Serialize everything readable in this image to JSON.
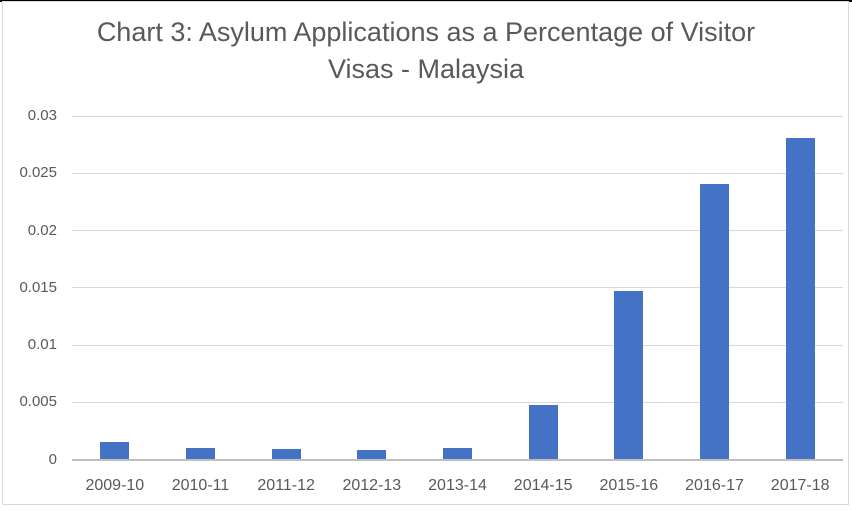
{
  "chart_data": {
    "type": "bar",
    "title": "Chart 3: Asylum Applications as a Percentage of Visitor Visas - Malaysia",
    "title_lines": [
      "Chart 3: Asylum Applications as a Percentage of Visitor",
      "Visas - Malaysia"
    ],
    "categories": [
      "2009-10",
      "2010-11",
      "2011-12",
      "2012-13",
      "2013-14",
      "2014-15",
      "2015-16",
      "2016-17",
      "2017-18"
    ],
    "values": [
      0.0015,
      0.001,
      0.0009,
      0.0008,
      0.001,
      0.0047,
      0.0147,
      0.024,
      0.028
    ],
    "xlabel": "",
    "ylabel": "",
    "ylim": [
      0,
      0.03
    ],
    "yticks": [
      0,
      0.005,
      0.01,
      0.015,
      0.02,
      0.025,
      0.03
    ],
    "ytick_labels": [
      "0",
      "0.005",
      "0.01",
      "0.015",
      "0.02",
      "0.025",
      "0.03"
    ],
    "grid": true,
    "legend": "none",
    "colors": {
      "bar": "#4472C4",
      "title_text": "#595959",
      "tick_text": "#595959",
      "gridline": "#D9D9D9",
      "axis_line": "#BFBFBF",
      "background": "#FFFFFF",
      "frame_border": "#D9D9D9",
      "top_edge": "#000000"
    }
  }
}
